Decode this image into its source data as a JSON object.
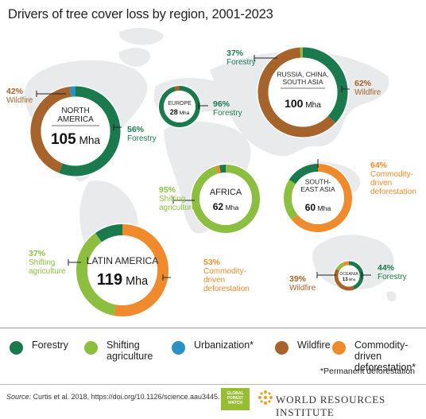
{
  "title": "Drivers of tree cover loss by region, 2001-2023",
  "colors": {
    "forestry": "#1a7a4e",
    "shifting_agriculture": "#8cbf3f",
    "urbanization": "#2b91c7",
    "wildfire": "#a6632c",
    "commodity": "#ef8b2c",
    "map": "#e9eaeb"
  },
  "chart_data": {
    "type": "pie",
    "style": "donut",
    "drivers": [
      "Forestry",
      "Shifting agriculture",
      "Urbanization",
      "Wildfire",
      "Commodity-driven deforestation"
    ],
    "regions": [
      {
        "id": "north-america",
        "name_lines": [
          "NORTH",
          "AMERICA"
        ],
        "total_value": "105",
        "total_unit": "Mha",
        "slices": [
          {
            "driver": "forestry",
            "percent": 56
          },
          {
            "driver": "wildfire",
            "percent": 42
          },
          {
            "driver": "urbanization",
            "percent": 2
          }
        ],
        "callouts": [
          {
            "pct": "56%",
            "lines": [
              "Forestry"
            ],
            "color": "forestry"
          },
          {
            "pct": "42%",
            "lines": [
              "Wildfire"
            ],
            "color": "wildfire"
          }
        ]
      },
      {
        "id": "europe",
        "name_lines": [
          "EUROPE"
        ],
        "total_value": "28",
        "total_unit": "Mha",
        "slices": [
          {
            "driver": "forestry",
            "percent": 96
          },
          {
            "driver": "wildfire",
            "percent": 4
          }
        ],
        "callouts": [
          {
            "pct": "96%",
            "lines": [
              "Forestry"
            ],
            "color": "forestry"
          }
        ]
      },
      {
        "id": "russia-china-south-asia",
        "name_lines": [
          "RUSSIA, CHINA,",
          "SOUTH ASIA"
        ],
        "total_value": "100",
        "total_unit": "Mha",
        "slices": [
          {
            "driver": "forestry",
            "percent": 37
          },
          {
            "driver": "wildfire",
            "percent": 62
          },
          {
            "driver": "shifting",
            "percent": 1
          }
        ],
        "callouts": [
          {
            "pct": "37%",
            "lines": [
              "Forestry"
            ],
            "color": "forestry"
          },
          {
            "pct": "62%",
            "lines": [
              "Wildfire"
            ],
            "color": "wildfire"
          }
        ]
      },
      {
        "id": "africa",
        "name_lines": [
          "AFRICA"
        ],
        "total_value": "62",
        "total_unit": "Mha",
        "slices": [
          {
            "driver": "shifting",
            "percent": 95
          },
          {
            "driver": "commodity",
            "percent": 2
          },
          {
            "driver": "forestry",
            "percent": 3
          }
        ],
        "callouts": [
          {
            "pct": "95%",
            "lines": [
              "Shifting",
              "agriculture"
            ],
            "color": "shifting_agriculture"
          }
        ]
      },
      {
        "id": "southeast-asia",
        "name_lines": [
          "SOUTH-",
          "EAST ASIA"
        ],
        "total_value": "60",
        "total_unit": "Mha",
        "slices": [
          {
            "driver": "commodity",
            "percent": 64
          },
          {
            "driver": "shifting",
            "percent": 20
          },
          {
            "driver": "forestry",
            "percent": 16
          }
        ],
        "callouts": [
          {
            "pct": "64%",
            "lines": [
              "Commodity-",
              "driven",
              "deforestation"
            ],
            "color": "commodity"
          }
        ]
      },
      {
        "id": "latin-america",
        "name_lines": [
          "LATIN AMERICA"
        ],
        "total_value": "119",
        "total_unit": "Mha",
        "slices": [
          {
            "driver": "commodity",
            "percent": 53
          },
          {
            "driver": "shifting",
            "percent": 37
          },
          {
            "driver": "forestry",
            "percent": 10
          }
        ],
        "callouts": [
          {
            "pct": "53%",
            "lines": [
              "Commodity-",
              "driven",
              "deforestation"
            ],
            "color": "commodity"
          },
          {
            "pct": "37%",
            "lines": [
              "Shifting",
              "agriculture"
            ],
            "color": "shifting_agriculture"
          }
        ]
      },
      {
        "id": "oceania",
        "name_lines": [
          "OCEANIA"
        ],
        "total_value": "13",
        "total_unit": "Mha",
        "slices": [
          {
            "driver": "forestry",
            "percent": 44
          },
          {
            "driver": "wildfire",
            "percent": 39
          },
          {
            "driver": "shifting",
            "percent": 10
          },
          {
            "driver": "commodity",
            "percent": 7
          }
        ],
        "callouts": [
          {
            "pct": "44%",
            "lines": [
              "Forestry"
            ],
            "color": "forestry"
          },
          {
            "pct": "39%",
            "lines": [
              "Wildfire"
            ],
            "color": "wildfire"
          }
        ]
      }
    ]
  },
  "legend": {
    "items": [
      {
        "label_lines": [
          "Forestry"
        ],
        "color": "forestry"
      },
      {
        "label_lines": [
          "Shifting",
          "agriculture"
        ],
        "color": "shifting_agriculture"
      },
      {
        "label_lines": [
          "Urbanization*"
        ],
        "color": "urbanization"
      },
      {
        "label_lines": [
          "Wildfire"
        ],
        "color": "wildfire"
      },
      {
        "label_lines": [
          "Commodity-driven",
          "deforestation*"
        ],
        "color": "commodity"
      }
    ],
    "note": "*Permanent deforestation"
  },
  "footer": {
    "source_label": "Source:",
    "source_text": " Curtis et al. 2018, https://doi.org/10.1126/science.aau3445.",
    "gfw_logo_lines": [
      "GLOBAL",
      "FOREST",
      "WATCH"
    ],
    "wri_text": "WORLD RESOURCES INSTITUTE"
  }
}
